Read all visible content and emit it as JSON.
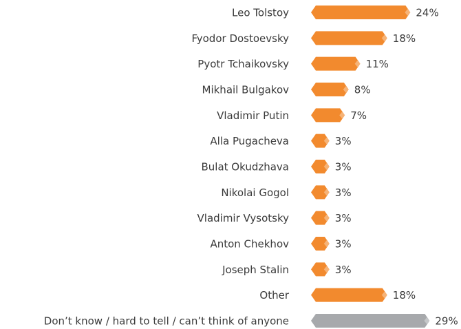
{
  "chart_data": {
    "type": "bar",
    "categories": [
      "Leo Tolstoy",
      "Fyodor Dostoevsky",
      "Pyotr Tchaikovsky",
      "Mikhail Bulgakov",
      "Vladimir Putin",
      "Alla Pugacheva",
      "Bulat Okudzhava",
      "Nikolai Gogol",
      "Vladimir Vysotsky",
      "Anton Chekhov",
      "Joseph Stalin",
      "Other",
      "Don’t know / hard to tell / can’t think of anyone"
    ],
    "values": [
      24,
      18,
      11,
      8,
      7,
      3,
      3,
      3,
      3,
      3,
      3,
      18,
      29
    ],
    "value_labels": [
      "24%",
      "18%",
      "11%",
      "8%",
      "7%",
      "3%",
      "3%",
      "3%",
      "3%",
      "3%",
      "3%",
      "18%",
      "29%"
    ],
    "colors": [
      "#f28a2e",
      "#f28a2e",
      "#f28a2e",
      "#f28a2e",
      "#f28a2e",
      "#f28a2e",
      "#f28a2e",
      "#f28a2e",
      "#f28a2e",
      "#f28a2e",
      "#f28a2e",
      "#f28a2e",
      "#a7a9ac"
    ]
  }
}
